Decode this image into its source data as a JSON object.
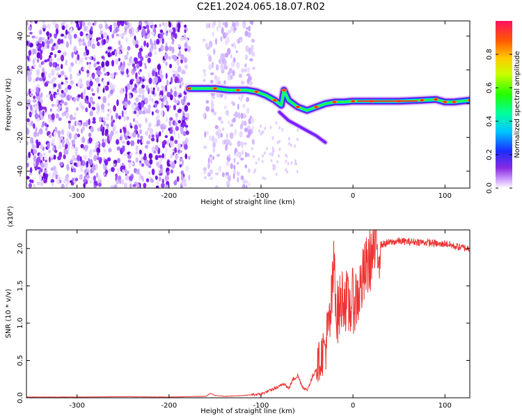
{
  "title": "C2E1.2024.065.18.07.R02",
  "chart_data": [
    {
      "type": "heatmap",
      "xlabel": "Height of straight line (km)",
      "ylabel": "Frequency (Hz)",
      "xlim": [
        -355,
        127
      ],
      "ylim": [
        -50,
        49
      ],
      "x_ticks": [
        -300,
        -200,
        -100,
        0,
        100
      ],
      "y_ticks": [
        -40,
        -20,
        0,
        20,
        40
      ],
      "colorbar": {
        "label": "Normalized spectral amplitude",
        "range": [
          0,
          1
        ],
        "ticks": [
          "0.0",
          "0.2",
          "0.4",
          "0.6",
          "0.8"
        ]
      },
      "noise_regions": [
        {
          "x": [
            -355,
            -178
          ],
          "density": "high"
        },
        {
          "x": [
            -162,
            -108
          ],
          "density": "low"
        }
      ],
      "ridge": {
        "x": [
          -178,
          -165,
          -150,
          -135,
          -125,
          -115,
          -105,
          -95,
          -85,
          -78,
          -75,
          -70,
          -60,
          -50,
          -40,
          -30,
          -20,
          -10,
          0,
          20,
          50,
          75,
          90,
          100,
          110,
          127
        ],
        "y": [
          9,
          9,
          9,
          8,
          8,
          8,
          7,
          5,
          2,
          -1,
          8,
          2,
          -2,
          -4,
          -2,
          0,
          1,
          1,
          1.5,
          1.5,
          1.5,
          2,
          2.5,
          1,
          1,
          2
        ]
      },
      "secondary_ridge": {
        "x": [
          -80,
          -70,
          -60,
          -50,
          -40,
          -35,
          -30
        ],
        "y": [
          -5,
          -10,
          -13,
          -16,
          -19,
          -21,
          -23
        ]
      }
    },
    {
      "type": "line",
      "xlabel": "Height of straight line (km)",
      "ylabel": "SNR (10 * v/v)",
      "y_multiplier": "(x10⁴)",
      "xlim": [
        -355,
        127
      ],
      "ylim": [
        0,
        2.25
      ],
      "x_ticks": [
        -300,
        -200,
        -100,
        0,
        100
      ],
      "y_ticks": [
        "0.0",
        "0.5",
        "1.0",
        "1.5",
        "2.0"
      ],
      "series": [
        {
          "color": "#ee3333",
          "x": [
            -355,
            -300,
            -250,
            -200,
            -160,
            -155,
            -150,
            -140,
            -120,
            -100,
            -90,
            -80,
            -75,
            -70,
            -65,
            -60,
            -55,
            -50,
            -45,
            -40,
            -35,
            -30,
            -25,
            -22,
            -20,
            -18,
            -15,
            -10,
            -5,
            0,
            5,
            10,
            15,
            20,
            25,
            30,
            40,
            50,
            60,
            70,
            80,
            90,
            95,
            100,
            110,
            120,
            127
          ],
          "values": [
            0.01,
            0.01,
            0.015,
            0.01,
            0.02,
            0.06,
            0.03,
            0.02,
            0.03,
            0.05,
            0.1,
            0.15,
            0.2,
            0.12,
            0.25,
            0.3,
            0.15,
            0.1,
            0.25,
            0.4,
            0.55,
            0.7,
            1.0,
            1.5,
            1.9,
            1.1,
            1.2,
            1.4,
            1.2,
            1.3,
            1.35,
            1.55,
            1.75,
            1.9,
            2.0,
            2.05,
            2.08,
            2.1,
            2.09,
            2.09,
            2.08,
            2.07,
            2.05,
            2.07,
            2.03,
            2.01,
            2.0
          ]
        }
      ]
    }
  ],
  "colors": {
    "line": "#ee3333",
    "axis": "#000000"
  }
}
